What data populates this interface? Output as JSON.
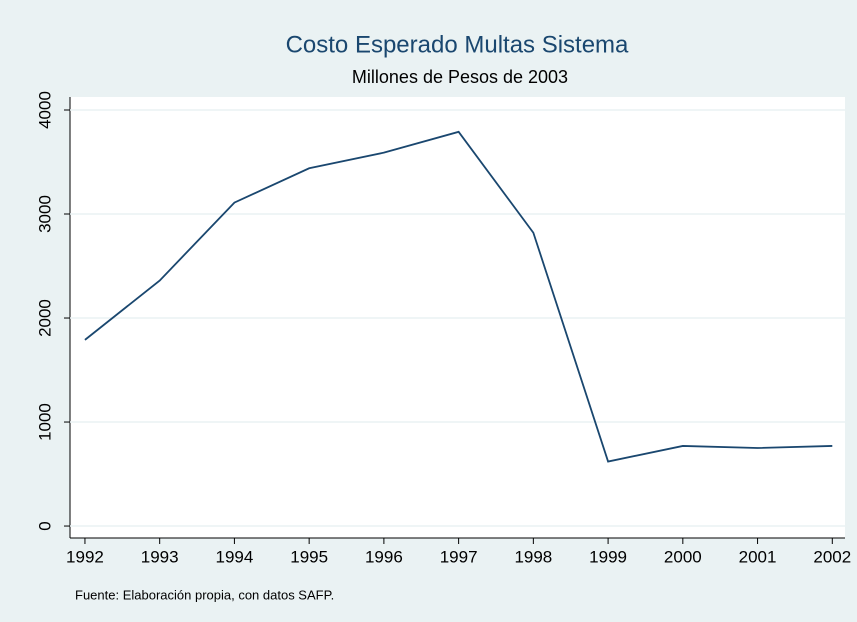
{
  "chart_data": {
    "type": "line",
    "title": "Costo Esperado Multas Sistema",
    "subtitle": "Millones de Pesos de 2003",
    "note": "Fuente: Elaboración propia, con datos SAFP.",
    "x": [
      1992,
      1993,
      1994,
      1995,
      1996,
      1997,
      1998,
      1999,
      2000,
      2001,
      2002
    ],
    "series": [
      {
        "color": "#1a476f",
        "values": [
          1790,
          2360,
          3110,
          3440,
          3590,
          3790,
          2820,
          620,
          770,
          750,
          770
        ]
      }
    ],
    "xlim": [
      1991.8,
      2002.17
    ],
    "xticks": [
      1992,
      1993,
      1994,
      1995,
      1996,
      1997,
      1998,
      1999,
      2000,
      2001,
      2002
    ],
    "ylim": [
      -115,
      4125
    ],
    "yticks": [
      0,
      1000,
      2000,
      3000,
      4000
    ],
    "grid": true
  }
}
